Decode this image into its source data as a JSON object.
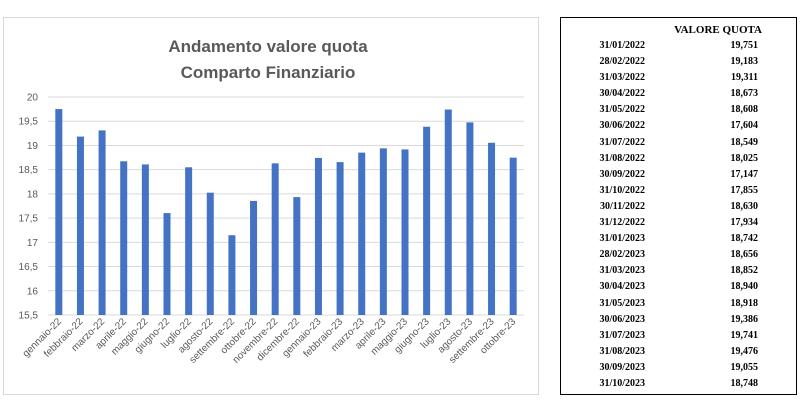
{
  "chart_data": {
    "type": "bar",
    "title": [
      "Andamento valore quota",
      "Comparto Finanziario"
    ],
    "categories": [
      "gennaio-22",
      "febbraio-22",
      "marzo-22",
      "aprile-22",
      "maggio-22",
      "giugno-22",
      "luglio-22",
      "agosto-22",
      "settembre-22",
      "ottobre-22",
      "novembre-22",
      "dicembre-22",
      "gennaio-23",
      "febbraio-23",
      "marzo-23",
      "aprile-23",
      "maggio-23",
      "giugno-23",
      "luglio-23",
      "agosto-23",
      "settembre-23",
      "ottobre-23"
    ],
    "values": [
      19.751,
      19.183,
      19.311,
      18.673,
      18.608,
      17.604,
      18.549,
      18.025,
      17.147,
      17.855,
      18.63,
      17.934,
      18.742,
      18.656,
      18.852,
      18.94,
      18.918,
      19.386,
      19.741,
      19.476,
      19.055,
      18.748
    ],
    "y_ticks": [
      "15,5",
      "16",
      "16,5",
      "17",
      "17,5",
      "18",
      "18,5",
      "19",
      "19,5",
      "20"
    ],
    "ylim": [
      15.5,
      20
    ],
    "grid": true,
    "bar_color": "#4472c4",
    "gridline_color": "#d9d9d9"
  },
  "table": {
    "header": "VALORE QUOTA",
    "rows": [
      {
        "date": "31/01/2022",
        "value": "19,751"
      },
      {
        "date": "28/02/2022",
        "value": "19,183"
      },
      {
        "date": "31/03/2022",
        "value": "19,311"
      },
      {
        "date": "30/04/2022",
        "value": "18,673"
      },
      {
        "date": "31/05/2022",
        "value": "18,608"
      },
      {
        "date": "30/06/2022",
        "value": "17,604"
      },
      {
        "date": "31/07/2022",
        "value": "18,549"
      },
      {
        "date": "31/08/2022",
        "value": "18,025"
      },
      {
        "date": "30/09/2022",
        "value": "17,147"
      },
      {
        "date": "31/10/2022",
        "value": "17,855"
      },
      {
        "date": "30/11/2022",
        "value": "18,630"
      },
      {
        "date": "31/12/2022",
        "value": "17,934"
      },
      {
        "date": "31/01/2023",
        "value": "18,742"
      },
      {
        "date": "28/02/2023",
        "value": "18,656"
      },
      {
        "date": "31/03/2023",
        "value": "18,852"
      },
      {
        "date": "30/04/2023",
        "value": "18,940"
      },
      {
        "date": "31/05/2023",
        "value": "18,918"
      },
      {
        "date": "30/06/2023",
        "value": "19,386"
      },
      {
        "date": "31/07/2023",
        "value": "19,741"
      },
      {
        "date": "31/08/2023",
        "value": "19,476"
      },
      {
        "date": "30/09/2023",
        "value": "19,055"
      },
      {
        "date": "31/10/2023",
        "value": "18,748"
      }
    ]
  }
}
